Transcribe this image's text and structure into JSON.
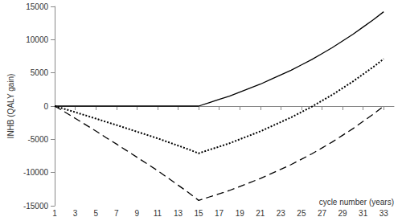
{
  "chart_data": {
    "type": "line",
    "x_label": "cycle number (years)",
    "y_label": "INHB (QALY gain)",
    "x": [
      1,
      2,
      3,
      4,
      5,
      6,
      7,
      8,
      9,
      10,
      11,
      12,
      13,
      14,
      15,
      16,
      17,
      18,
      19,
      20,
      21,
      22,
      23,
      24,
      25,
      26,
      27,
      28,
      29,
      30,
      31,
      32,
      33
    ],
    "series": [
      {
        "color": "#000000",
        "line_style": "solid",
        "values": [
          0,
          0,
          0,
          0,
          0,
          0,
          0,
          0,
          0,
          0,
          0,
          0,
          0,
          0,
          0,
          500,
          1000,
          1500,
          2100,
          2700,
          3300,
          4000,
          4700,
          5400,
          6200,
          7000,
          7900,
          8800,
          9800,
          10800,
          11900,
          13000,
          14200
        ]
      },
      {
        "color": "#000000",
        "line_style": "dotted",
        "values": [
          0,
          -450,
          -920,
          -1400,
          -1880,
          -2380,
          -2850,
          -3350,
          -3850,
          -4350,
          -4850,
          -5400,
          -5950,
          -6500,
          -7100,
          -6600,
          -6100,
          -5600,
          -5000,
          -4400,
          -3800,
          -3100,
          -2400,
          -1700,
          -900,
          -100,
          800,
          1700,
          2700,
          3700,
          4800,
          5900,
          7100
        ]
      },
      {
        "color": "#000000",
        "line_style": "dashed",
        "values": [
          0,
          -900,
          -1850,
          -2800,
          -3750,
          -4750,
          -5700,
          -6700,
          -7700,
          -8700,
          -9700,
          -10800,
          -11900,
          -13000,
          -14200,
          -13700,
          -13200,
          -12700,
          -12100,
          -11500,
          -10900,
          -10200,
          -9500,
          -8800,
          -8000,
          -7200,
          -6300,
          -5400,
          -4400,
          -3400,
          -2300,
          -1200,
          0
        ]
      }
    ],
    "xlim": [
      1,
      34
    ],
    "xticks": [
      1,
      3,
      5,
      7,
      9,
      11,
      13,
      15,
      17,
      19,
      21,
      23,
      25,
      27,
      29,
      31,
      33
    ],
    "ylim": [
      -15000,
      15000
    ],
    "yticks": [
      -15000,
      -10000,
      -5000,
      0,
      5000,
      10000,
      15000
    ],
    "grid": false
  }
}
